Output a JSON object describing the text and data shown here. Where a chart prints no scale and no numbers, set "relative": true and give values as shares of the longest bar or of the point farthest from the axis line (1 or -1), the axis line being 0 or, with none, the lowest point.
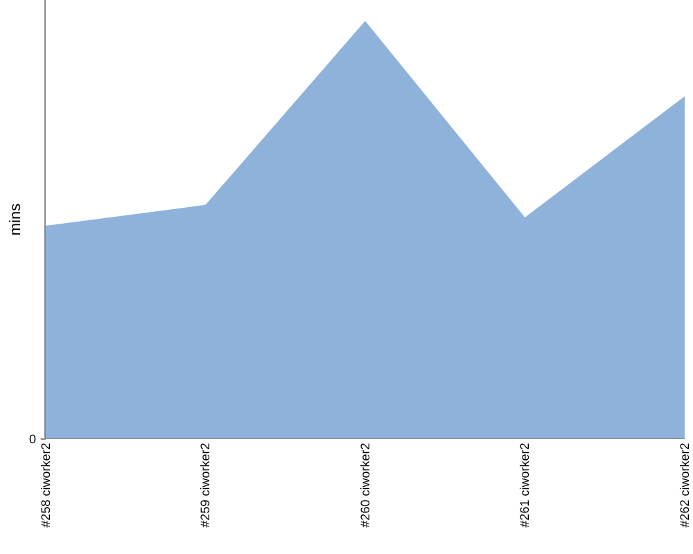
{
  "chart_data": {
    "type": "area",
    "relative": true,
    "ylabel": "mins",
    "categories": [
      "#258 ciworker2",
      "#259 ciworker2",
      "#260 ciworker2",
      "#261 ciworker2",
      "#262 ciworker2"
    ],
    "series": [
      {
        "color": "#8fb2db",
        "values": [
          0.51,
          0.56,
          1,
          0.53,
          0.82
        ]
      }
    ],
    "annotations": [
      "0"
    ]
  }
}
